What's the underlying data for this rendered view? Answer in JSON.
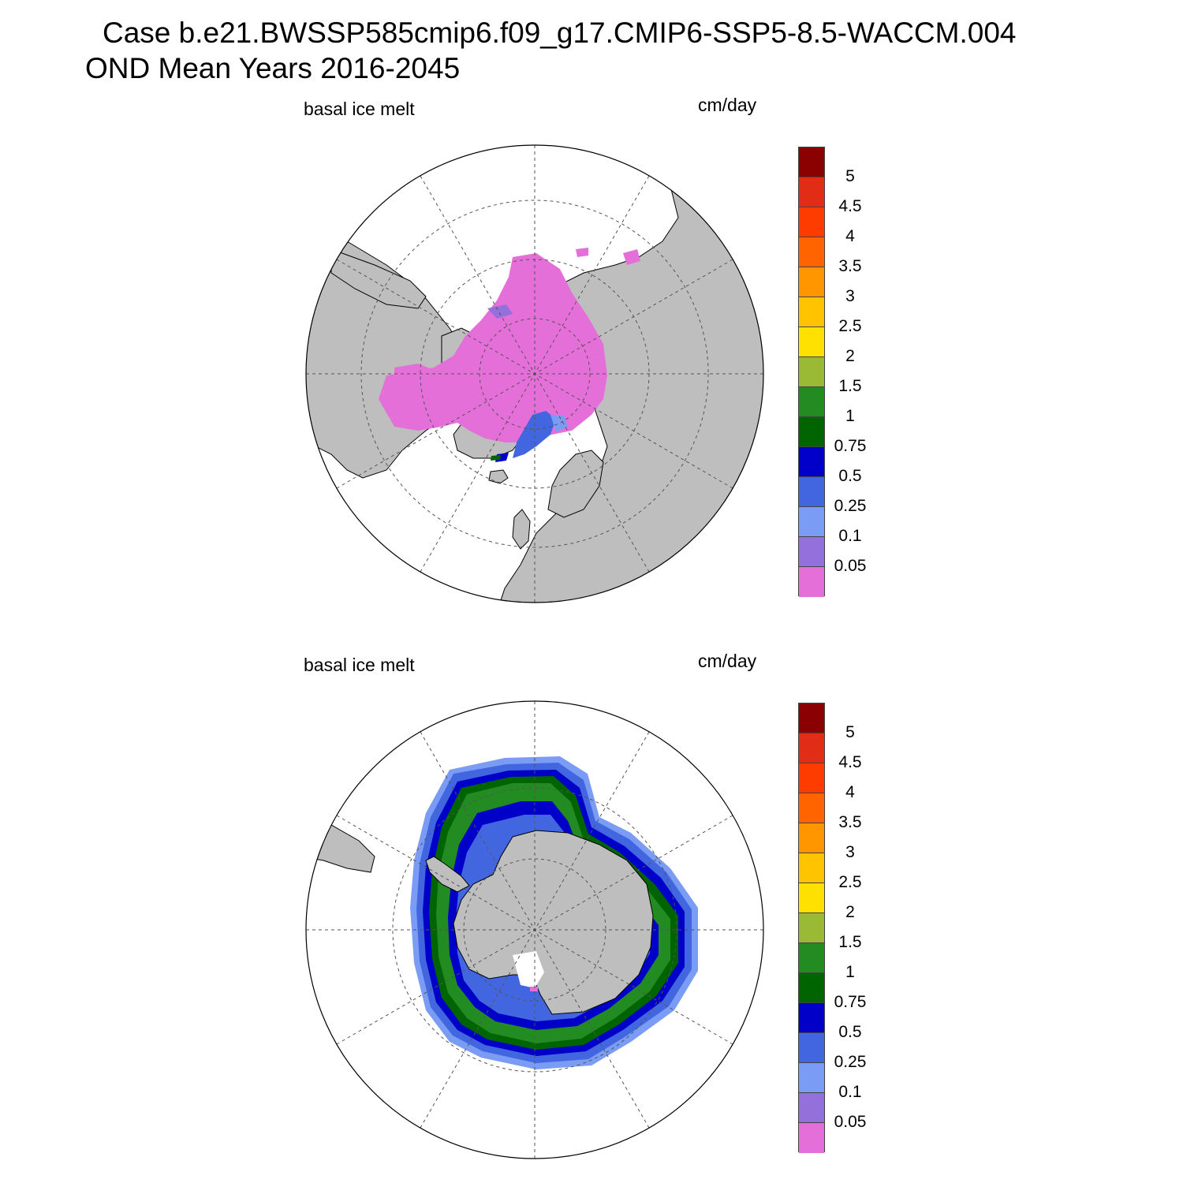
{
  "header": {
    "line1": "Case b.e21.BWSSP585cmip6.f09_g17.CMIP6-SSP5-8.5-WACCM.004",
    "line2": "OND Mean   Years 2016-2045"
  },
  "panels": [
    {
      "id": "north",
      "left_label": "basal ice melt",
      "right_label": "cm/day"
    },
    {
      "id": "south",
      "left_label": "basal ice melt",
      "right_label": "cm/day"
    }
  ],
  "colorbar": {
    "colors": [
      "#e46fd9",
      "#9370db",
      "#7b9cf4",
      "#4266e0",
      "#0000c8",
      "#006400",
      "#228b22",
      "#9aba35",
      "#ffe100",
      "#ffc300",
      "#ff9600",
      "#ff6400",
      "#ff3c00",
      "#e12d16",
      "#8b0000"
    ],
    "labels": [
      "0.05",
      "0.1",
      "0.25",
      "0.5",
      "0.75",
      "1",
      "1.5",
      "2",
      "2.5",
      "3",
      "3.5",
      "4",
      "4.5",
      "5"
    ]
  },
  "map_style": {
    "land_color": "#bebebe",
    "ocean_color": "#ffffff",
    "grid_style": "dashed"
  }
}
